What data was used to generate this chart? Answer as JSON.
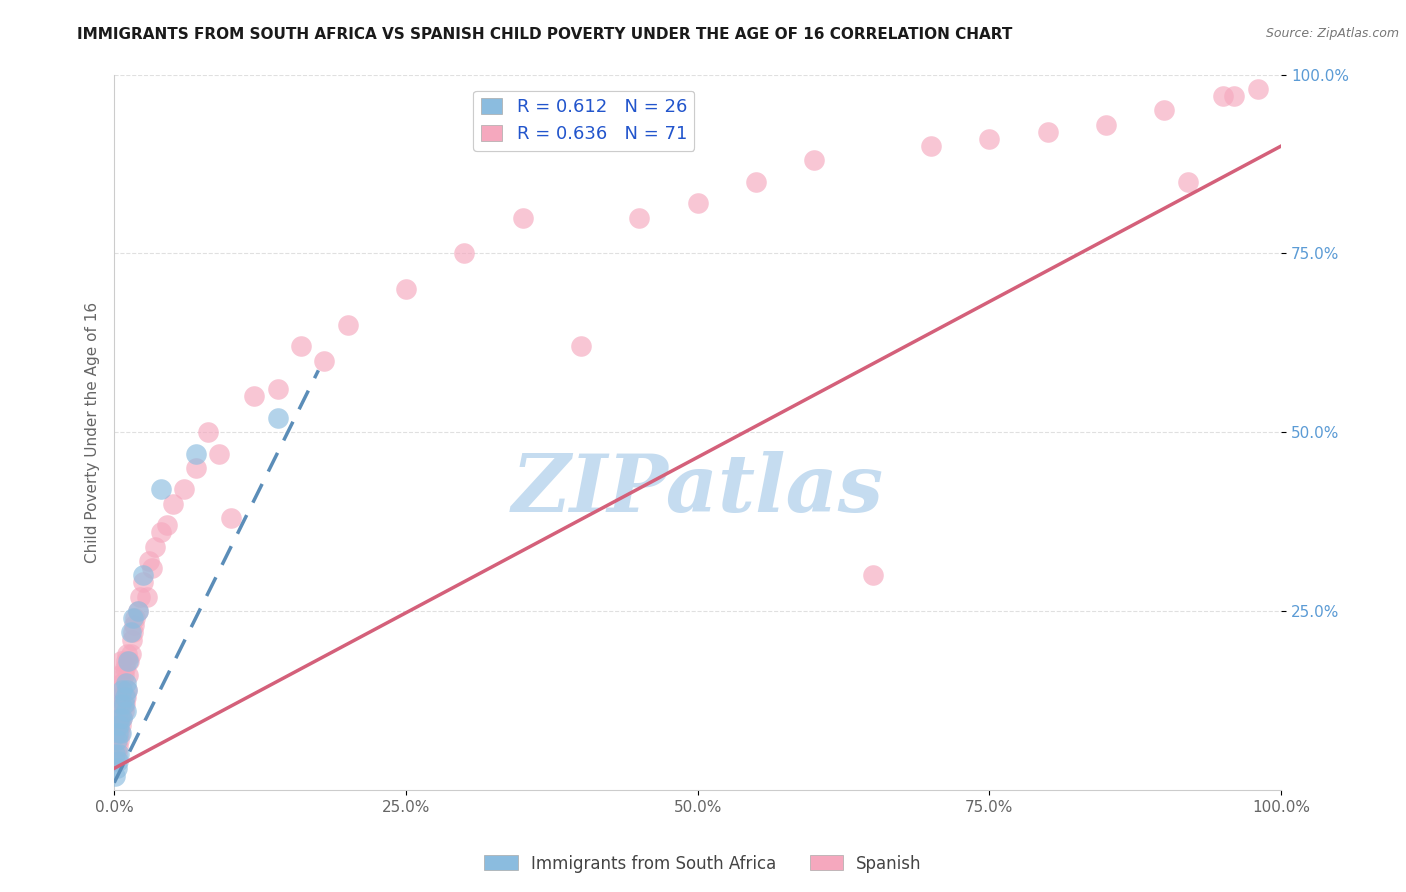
{
  "title": "IMMIGRANTS FROM SOUTH AFRICA VS SPANISH CHILD POVERTY UNDER THE AGE OF 16 CORRELATION CHART",
  "source": "Source: ZipAtlas.com",
  "ylabel": "Child Poverty Under the Age of 16",
  "xlabel": "",
  "xlim": [
    0.0,
    1.0
  ],
  "ylim": [
    0.0,
    1.0
  ],
  "xticks": [
    0.0,
    0.25,
    0.5,
    0.75,
    1.0
  ],
  "yticks": [
    0.25,
    0.5,
    0.75,
    1.0
  ],
  "xtick_labels": [
    "0.0%",
    "25.0%",
    "50.0%",
    "75.0%",
    "100.0%"
  ],
  "ytick_labels": [
    "25.0%",
    "50.0%",
    "75.0%",
    "100.0%"
  ],
  "blue_R": 0.612,
  "blue_N": 26,
  "pink_R": 0.636,
  "pink_N": 71,
  "blue_color": "#8BBCDF",
  "pink_color": "#F5A8BE",
  "blue_line_color": "#5B8DB8",
  "pink_line_color": "#D4607A",
  "blue_trend_x0": 0.0,
  "blue_trend_y0": 0.01,
  "blue_trend_x1": 0.17,
  "blue_trend_y1": 0.57,
  "pink_trend_x0": 0.0,
  "pink_trend_y0": 0.03,
  "pink_trend_x1": 1.0,
  "pink_trend_y1": 0.9,
  "watermark": "ZIPatlas",
  "watermark_color": "#C5DCF0",
  "legend_label_blue": "Immigrants from South Africa",
  "legend_label_pink": "Spanish",
  "background_color": "#FFFFFF",
  "grid_color": "#DDDDDD"
}
